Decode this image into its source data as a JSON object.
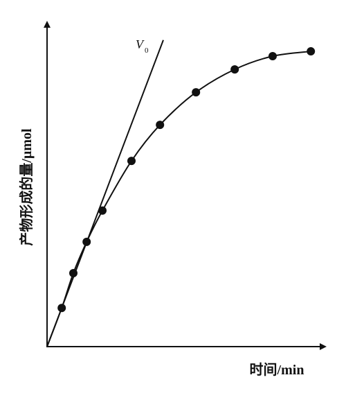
{
  "chart_data": {
    "type": "scatter",
    "xlabel": "时间/min",
    "ylabel": "产物形成的量/μmol",
    "x": [
      5.3,
      9.5,
      14.3,
      20,
      30.5,
      40.8,
      53.8,
      67.8,
      81.5,
      95.3
    ],
    "values": [
      12.0,
      22.8,
      32.5,
      42.2,
      57.6,
      68.8,
      78.9,
      86.0,
      90.1,
      91.6
    ],
    "color": "#111111",
    "xlim": [
      0,
      100
    ],
    "ylim": [
      0,
      100
    ],
    "tangent": {
      "label": "V",
      "subscript": "0",
      "x": [
        0,
        42
      ],
      "values": [
        0,
        95.1
      ]
    }
  }
}
